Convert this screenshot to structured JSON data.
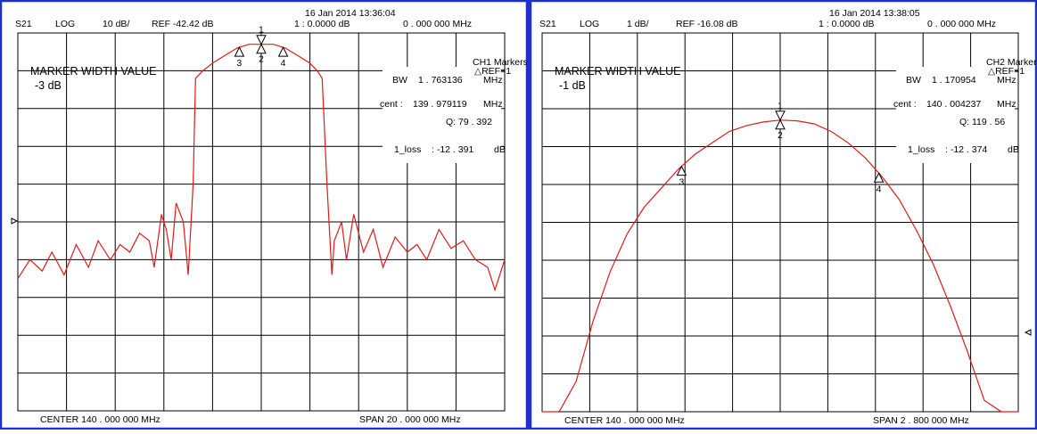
{
  "chart_data": [
    {
      "type": "line",
      "channel": "CH1",
      "header": {
        "param": "S21",
        "format": "LOG",
        "scale": "10 dB/",
        "ref": "REF -42.42 dB",
        "timestamp": "16 Jan 2014  13:36:04",
        "marker_readout": "1 :  0.0000  dB",
        "marker_freq": "0 . 000  000  MHz"
      },
      "markers_panel": {
        "title": "CH1  Markers",
        "ref": "△REF=1",
        "bw_label": "BW",
        "bw_value": "1 . 763136",
        "bw_unit": "MHz",
        "cent_label": "cent  :",
        "cent_value": "139 . 979119",
        "cent_unit": "MHz",
        "q_text": "Q:  79 . 392",
        "loss_label": "1_loss",
        "loss_value": ":  -12 . 391",
        "loss_unit": "dB"
      },
      "annotation": {
        "title": "MARKER WIDTH VALUE",
        "value": "-3 dB"
      },
      "footer": {
        "center": "CENTER  140 . 000  000  MHz",
        "span": "SPAN    20 . 000  000  MHz"
      },
      "center_mhz": 140.0,
      "span_mhz": 20.0,
      "xlim": [
        130.0,
        150.0
      ],
      "ylim": [
        -100,
        0
      ],
      "y_divisions": 10,
      "x_divisions": 10,
      "trace_color": "#e01a1a",
      "marker_labels": [
        "1",
        "2",
        "3",
        "4"
      ],
      "marker_x": [
        140.0,
        140.0,
        139.1,
        140.9
      ],
      "x": [
        130.0,
        130.5,
        131.0,
        131.4,
        131.9,
        132.4,
        132.9,
        133.3,
        133.8,
        134.2,
        134.6,
        135.0,
        135.4,
        135.6,
        135.9,
        136.1,
        136.3,
        136.5,
        136.8,
        137.0,
        137.2,
        137.3,
        137.6,
        138.0,
        138.5,
        139.0,
        139.5,
        140.0,
        140.5,
        141.0,
        141.5,
        142.0,
        142.3,
        142.5,
        142.7,
        142.9,
        143.0,
        143.3,
        143.5,
        143.8,
        144.2,
        144.6,
        145.0,
        145.5,
        146.0,
        146.4,
        146.8,
        147.3,
        147.8,
        148.3,
        148.8,
        149.3,
        149.6,
        150.0
      ],
      "y": [
        -65,
        -60,
        -63,
        -58,
        -64,
        -56,
        -62,
        -55,
        -60,
        -56,
        -58,
        -53,
        -55,
        -62,
        -48,
        -52,
        -60,
        -45,
        -50,
        -64,
        -40,
        -12,
        -10,
        -8,
        -6,
        -4,
        -3,
        -3,
        -3,
        -4,
        -6,
        -8,
        -10,
        -12,
        -40,
        -64,
        -55,
        -50,
        -60,
        -48,
        -58,
        -52,
        -62,
        -54,
        -58,
        -56,
        -60,
        -52,
        -57,
        -55,
        -60,
        -62,
        -68,
        -60
      ]
    },
    {
      "type": "line",
      "channel": "CH2",
      "header": {
        "param": "S21",
        "format": "LOG",
        "scale": "1 dB/",
        "ref": "REF -16.08 dB",
        "timestamp": "16 Jan 2014  13:38:05",
        "marker_readout": "1 :  0.0000  dB",
        "marker_freq": "0 . 000  000  MHz"
      },
      "markers_panel": {
        "title": "CH2  Markers",
        "ref": "△REF=1",
        "bw_label": "BW",
        "bw_value": "1 . 170954",
        "bw_unit": "MHz",
        "cent_label": "cent  :",
        "cent_value": "140 . 004237",
        "cent_unit": "MHz",
        "q_text": "Q:  119 . 56",
        "loss_label": "1_loss",
        "loss_value": ":  -12 . 374",
        "loss_unit": "dB"
      },
      "annotation": {
        "title": "MARKER WIDTH VALUE",
        "value": "-1 dB"
      },
      "footer": {
        "center": "CENTER  140 . 000  000  MHz",
        "span": "SPAN    2 . 800  000  MHz"
      },
      "center_mhz": 140.0,
      "span_mhz": 2.8,
      "xlim": [
        138.6,
        141.4
      ],
      "ylim": [
        -10,
        0
      ],
      "y_divisions": 10,
      "x_divisions": 10,
      "trace_color": "#e01a1a",
      "marker_labels": [
        "1",
        "2",
        "3",
        "4"
      ],
      "marker_x": [
        140.0,
        140.0,
        139.42,
        140.58
      ],
      "x": [
        138.6,
        138.7,
        138.8,
        138.9,
        139.0,
        139.1,
        139.2,
        139.3,
        139.4,
        139.5,
        139.6,
        139.7,
        139.8,
        139.9,
        140.0,
        140.1,
        140.2,
        140.3,
        140.4,
        140.5,
        140.6,
        140.7,
        140.8,
        140.9,
        141.0,
        141.1,
        141.2,
        141.3,
        141.4
      ],
      "y": [
        -10.0,
        -10.0,
        -9.2,
        -7.6,
        -6.3,
        -5.3,
        -4.6,
        -4.1,
        -3.6,
        -3.2,
        -2.9,
        -2.6,
        -2.45,
        -2.35,
        -2.3,
        -2.32,
        -2.4,
        -2.6,
        -2.9,
        -3.3,
        -3.8,
        -4.4,
        -5.2,
        -6.1,
        -7.2,
        -8.4,
        -9.7,
        -10.0,
        -10.0
      ]
    }
  ]
}
